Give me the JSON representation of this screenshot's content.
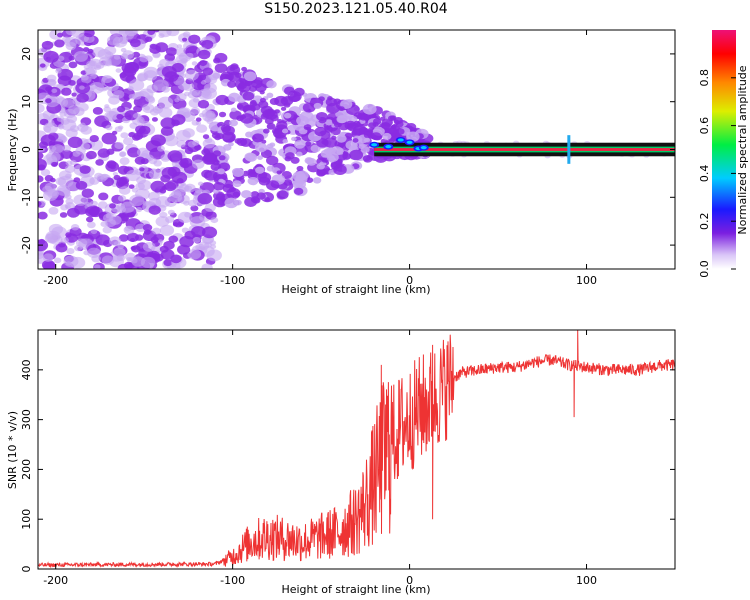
{
  "title": "S150.2023.121.05.40.R04",
  "colors": {
    "snr_line": "#ee3333",
    "carrier_core": "#ee2244",
    "noise_blob": "#8a2be2",
    "noise_blob_light": "#c7a6f2",
    "halo": "#1a1aff"
  },
  "chart_data": [
    {
      "type": "heatmap",
      "xlabel": "Height of straight line (km)",
      "ylabel": "Frequency (Hz)",
      "xlim": [
        -210,
        150
      ],
      "ylim": [
        -25,
        25
      ],
      "x_ticks": [
        -200,
        -100,
        0,
        100
      ],
      "y_ticks": [
        -20,
        -10,
        0,
        10,
        20
      ],
      "colorbar": {
        "label": "Normalized spectral amplitude",
        "range": [
          0,
          1
        ],
        "ticks": [
          0.0,
          0.2,
          0.4,
          0.6,
          0.8
        ],
        "tick_labels": [
          "0.0",
          "0.2",
          "0.4",
          "0.6",
          "0.8"
        ],
        "colormap": "rainbow (white → violet → blue → cyan → green → yellow → orange → red → magenta)"
      },
      "features": {
        "noise_region_km": [
          -210,
          -110
        ],
        "transition_region_km": [
          -110,
          10
        ],
        "carrier_start_km": -20,
        "carrier_frequency_hz": 0,
        "carrier_band_hz": [
          -1,
          1
        ],
        "spike_km": 90
      }
    },
    {
      "type": "line",
      "xlabel": "Height of straight line (km)",
      "ylabel": "SNR (10 * v/v)",
      "xlim": [
        -210,
        150
      ],
      "ylim": [
        0,
        480
      ],
      "x_ticks": [
        -200,
        -100,
        0,
        100
      ],
      "y_ticks": [
        0,
        100,
        200,
        300,
        400
      ],
      "series": [
        {
          "envelope": {
            "x": [
              -210,
              -110,
              -100,
              -90,
              -80,
              -70,
              -60,
              -50,
              -40,
              -30,
              -25,
              -20,
              -15,
              -10,
              -5,
              0,
              5,
              10,
              15,
              20,
              25,
              30,
              40,
              50,
              60,
              70,
              80,
              90,
              100,
              110,
              120,
              130,
              140,
              150
            ],
            "y": [
              8,
              10,
              25,
              55,
              65,
              60,
              55,
              65,
              75,
              100,
              130,
              175,
              220,
              260,
              285,
              300,
              320,
              330,
              345,
              365,
              385,
              395,
              400,
              405,
              405,
              415,
              420,
              410,
              405,
              400,
              400,
              400,
              408,
              410
            ]
          },
          "notable_spikes": [
            {
              "x": -16,
              "y": 410
            },
            {
              "x": 13,
              "y": 450
            },
            {
              "x": 13,
              "y": 100
            },
            {
              "x": 95,
              "y": 480
            },
            {
              "x": 93,
              "y": 305
            }
          ]
        }
      ]
    }
  ]
}
